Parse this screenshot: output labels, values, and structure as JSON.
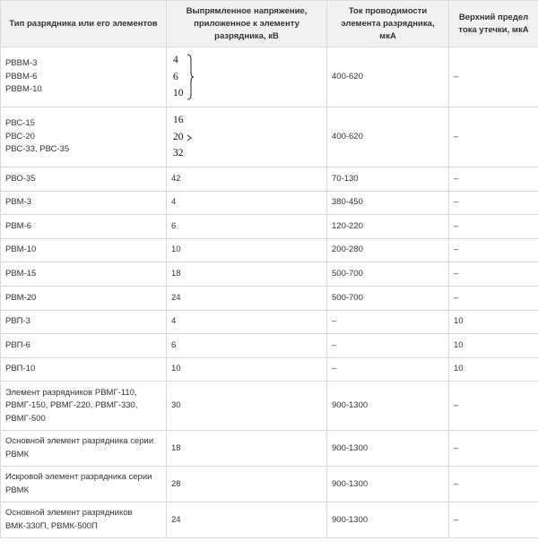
{
  "table": {
    "headers": [
      "Тип разрядника или его элементов",
      "Выпрямленное напряжение, приложенное к элементу разрядника, кВ",
      "Ток проводимости элемента разрядника, мкА",
      "Верхний предел тока утечки, мкА"
    ],
    "rows": [
      {
        "type_lines": [
          "РВВМ-3",
          "РВВМ-6",
          "РВВМ-10"
        ],
        "voltage_group": [
          "4",
          "6",
          "10"
        ],
        "current": "400-620",
        "leak": "–"
      },
      {
        "type_lines": [
          "РВС-15",
          "РВС-20",
          "РВС-33, РВС-35"
        ],
        "voltage_group": [
          "16",
          "20",
          "32"
        ],
        "current": "400-620",
        "leak": "–"
      },
      {
        "type": "РВО-35",
        "voltage": "42",
        "current": "70-130",
        "leak": "–"
      },
      {
        "type": "РВМ-3",
        "voltage": "4",
        "current": "380-450",
        "leak": "–"
      },
      {
        "type": "РВМ-6",
        "voltage": "6",
        "current": "120-220",
        "leak": "–"
      },
      {
        "type": "РВМ-10",
        "voltage": "10",
        "current": "200-280",
        "leak": "–"
      },
      {
        "type": "РВМ-15",
        "voltage": "18",
        "current": "500-700",
        "leak": "–"
      },
      {
        "type": "РВМ-20",
        "voltage": "24",
        "current": "500-700",
        "leak": "–"
      },
      {
        "type": "РВП-3",
        "voltage": "4",
        "current": "–",
        "leak": "10"
      },
      {
        "type": "РВП-6",
        "voltage": "6",
        "current": "–",
        "leak": "10"
      },
      {
        "type": "РВП-10",
        "voltage": "10",
        "current": "–",
        "leak": "10"
      },
      {
        "type_lines": [
          "Элемент разрядников РВМГ-110,",
          "РВМГ-150, РВМГ-220, РВМГ-330,",
          "РВМГ-500"
        ],
        "voltage": "30",
        "current": "900-1300",
        "leak": "–"
      },
      {
        "type_lines": [
          "Основной элемент разрядника серии",
          "РВМК"
        ],
        "voltage": "18",
        "current": "900-1300",
        "leak": "–"
      },
      {
        "type_lines": [
          "Искровой элемент разрядника серии",
          "РВМК"
        ],
        "voltage": "28",
        "current": "900-1300",
        "leak": "–"
      },
      {
        "type_lines": [
          "Основной элемент разрядников",
          "ВМК-330П, РВМК-500П"
        ],
        "voltage": "24",
        "current": "900-1300",
        "leak": "–"
      }
    ]
  }
}
